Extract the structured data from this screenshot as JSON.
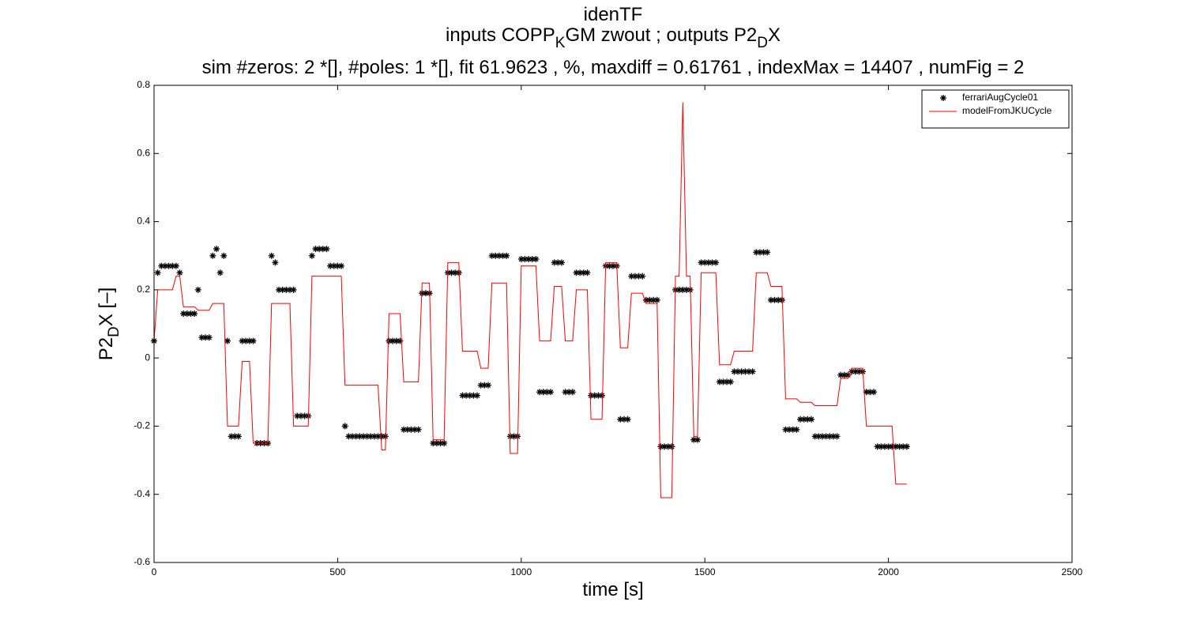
{
  "chart_data": {
    "type": "line",
    "title": "idenTF",
    "subtitle": [
      "inputs COPP",
      "K",
      "GM zwout ; outputs P2",
      "D",
      "X"
    ],
    "subtitle2": "sim #zeros:  2 *[], #poles:  1 *[], fit  61.9623 , %, maxdiff =  0.61761 , indexMax =  14407 , numFig =  2",
    "xlabel": "time [s]",
    "ylabel": [
      "P2",
      "D",
      "X [–]"
    ],
    "xlim": [
      0,
      2500
    ],
    "ylim": [
      -0.6,
      0.8
    ],
    "xticks": [
      0,
      500,
      1000,
      1500,
      2000,
      2500
    ],
    "yticks": [
      -0.6,
      -0.4,
      -0.2,
      0,
      0.2,
      0.4,
      0.6,
      0.8
    ],
    "grid": false,
    "legend": "northeast",
    "x": [
      0,
      10,
      20,
      30,
      40,
      50,
      60,
      70,
      80,
      90,
      100,
      110,
      120,
      130,
      140,
      150,
      160,
      170,
      180,
      190,
      200,
      210,
      220,
      230,
      240,
      250,
      260,
      270,
      280,
      290,
      300,
      310,
      320,
      330,
      340,
      350,
      360,
      370,
      380,
      390,
      400,
      410,
      420,
      430,
      440,
      450,
      460,
      470,
      480,
      490,
      500,
      510,
      520,
      530,
      540,
      550,
      560,
      570,
      580,
      590,
      600,
      610,
      620,
      630,
      640,
      650,
      660,
      670,
      680,
      690,
      700,
      710,
      720,
      730,
      740,
      750,
      760,
      770,
      780,
      790,
      800,
      810,
      820,
      830,
      840,
      850,
      860,
      870,
      880,
      890,
      900,
      910,
      920,
      930,
      940,
      950,
      960,
      970,
      980,
      990,
      1000,
      1010,
      1020,
      1030,
      1040,
      1050,
      1060,
      1070,
      1080,
      1090,
      1100,
      1110,
      1120,
      1130,
      1140,
      1150,
      1160,
      1170,
      1180,
      1190,
      1200,
      1210,
      1220,
      1230,
      1240,
      1250,
      1260,
      1270,
      1280,
      1290,
      1300,
      1310,
      1320,
      1330,
      1340,
      1350,
      1360,
      1370,
      1380,
      1390,
      1400,
      1410,
      1420,
      1430,
      1440,
      1450,
      1460,
      1470,
      1480,
      1490,
      1500,
      1510,
      1520,
      1530,
      1540,
      1550,
      1560,
      1570,
      1580,
      1590,
      1600,
      1610,
      1620,
      1630,
      1640,
      1650,
      1660,
      1670,
      1680,
      1690,
      1700,
      1710,
      1720,
      1730,
      1740,
      1750,
      1760,
      1770,
      1780,
      1790,
      1800,
      1810,
      1820,
      1830,
      1840,
      1850,
      1860,
      1870,
      1880,
      1890,
      1900,
      1910,
      1920,
      1930,
      1940,
      1950,
      1960,
      1970,
      1980,
      1990,
      2000,
      2010,
      2020,
      2030,
      2040,
      2050
    ],
    "series": [
      {
        "name": "ferrariAugCycle01",
        "color": "#000000",
        "style": "marker",
        "values": [
          0.05,
          0.25,
          0.27,
          0.27,
          0.27,
          0.27,
          0.27,
          0.25,
          0.13,
          0.13,
          0.13,
          0.13,
          0.2,
          0.06,
          0.06,
          0.06,
          0.3,
          0.32,
          0.25,
          0.3,
          0.05,
          -0.23,
          -0.23,
          -0.23,
          0.05,
          0.05,
          0.05,
          0.05,
          -0.25,
          -0.25,
          -0.25,
          -0.25,
          0.3,
          0.28,
          0.2,
          0.2,
          0.2,
          0.2,
          0.2,
          -0.17,
          -0.17,
          -0.17,
          -0.17,
          0.3,
          0.32,
          0.32,
          0.32,
          0.32,
          0.27,
          0.27,
          0.27,
          0.27,
          -0.2,
          -0.23,
          -0.23,
          -0.23,
          -0.23,
          -0.23,
          -0.23,
          -0.23,
          -0.23,
          -0.23,
          -0.23,
          -0.23,
          0.05,
          0.05,
          0.05,
          0.05,
          -0.21,
          -0.21,
          -0.21,
          -0.21,
          -0.21,
          0.19,
          0.19,
          0.19,
          -0.25,
          -0.25,
          -0.25,
          -0.25,
          0.25,
          0.25,
          0.25,
          0.25,
          -0.11,
          -0.11,
          -0.11,
          -0.11,
          -0.11,
          -0.08,
          -0.08,
          -0.08,
          0.3,
          0.3,
          0.3,
          0.3,
          0.3,
          -0.23,
          -0.23,
          -0.23,
          0.29,
          0.29,
          0.29,
          0.29,
          0.29,
          -0.1,
          -0.1,
          -0.1,
          -0.1,
          0.28,
          0.28,
          0.28,
          -0.1,
          -0.1,
          -0.1,
          0.25,
          0.25,
          0.25,
          0.25,
          -0.11,
          -0.11,
          -0.11,
          -0.11,
          0.27,
          0.27,
          0.27,
          0.27,
          -0.18,
          -0.18,
          -0.18,
          0.24,
          0.24,
          0.24,
          0.24,
          0.17,
          0.17,
          0.17,
          0.17,
          -0.26,
          -0.26,
          -0.26,
          -0.26,
          0.2,
          0.2,
          0.2,
          0.2,
          0.2,
          -0.24,
          -0.24,
          0.28,
          0.28,
          0.28,
          0.28,
          0.28,
          -0.07,
          -0.07,
          -0.07,
          -0.07,
          -0.04,
          -0.04,
          -0.04,
          -0.04,
          -0.04,
          -0.04,
          0.31,
          0.31,
          0.31,
          0.31,
          0.17,
          0.17,
          0.17,
          0.17,
          -0.21,
          -0.21,
          -0.21,
          -0.21,
          -0.18,
          -0.18,
          -0.18,
          -0.18,
          -0.23,
          -0.23,
          -0.23,
          -0.23,
          -0.23,
          -0.23,
          -0.23,
          -0.05,
          -0.05,
          -0.05,
          -0.04,
          -0.04,
          -0.04,
          -0.04,
          -0.1,
          -0.1,
          -0.1,
          -0.26,
          -0.26,
          -0.26,
          -0.26,
          -0.26,
          -0.26,
          -0.26,
          -0.26,
          -0.26
        ]
      },
      {
        "name": "modelFromJKUCycle",
        "color": "#ff0000",
        "style": "line",
        "values": [
          0.05,
          0.2,
          0.2,
          0.2,
          0.2,
          0.2,
          0.24,
          0.24,
          0.15,
          0.15,
          0.15,
          0.15,
          0.14,
          0.14,
          0.14,
          0.14,
          0.16,
          0.16,
          0.16,
          0.16,
          -0.2,
          -0.2,
          -0.2,
          -0.2,
          -0.01,
          -0.01,
          -0.01,
          -0.25,
          -0.25,
          -0.25,
          -0.25,
          -0.25,
          0.16,
          0.16,
          0.16,
          0.16,
          0.16,
          0.16,
          -0.2,
          -0.2,
          -0.2,
          -0.2,
          -0.2,
          0.24,
          0.24,
          0.24,
          0.24,
          0.24,
          0.24,
          0.24,
          0.24,
          0.24,
          -0.08,
          -0.08,
          -0.08,
          -0.08,
          -0.08,
          -0.08,
          -0.08,
          -0.08,
          -0.08,
          -0.08,
          -0.27,
          -0.27,
          0.13,
          0.13,
          0.13,
          0.13,
          -0.07,
          -0.07,
          -0.07,
          -0.07,
          -0.07,
          0.22,
          0.22,
          0.22,
          -0.24,
          -0.24,
          -0.24,
          -0.24,
          0.28,
          0.28,
          0.28,
          0.28,
          0.02,
          0.02,
          0.02,
          0.02,
          0.02,
          -0.03,
          -0.03,
          -0.03,
          0.22,
          0.22,
          0.22,
          0.22,
          0.22,
          -0.28,
          -0.28,
          -0.28,
          0.27,
          0.27,
          0.27,
          0.27,
          0.27,
          0.05,
          0.05,
          0.05,
          0.05,
          0.21,
          0.21,
          0.21,
          0.05,
          0.05,
          0.05,
          0.2,
          0.2,
          0.2,
          0.2,
          -0.18,
          -0.18,
          -0.18,
          -0.18,
          0.28,
          0.28,
          0.28,
          0.28,
          0.03,
          0.03,
          0.03,
          0.19,
          0.19,
          0.19,
          0.19,
          0.16,
          0.16,
          0.16,
          0.16,
          -0.41,
          -0.41,
          -0.41,
          -0.41,
          0.24,
          0.24,
          0.75,
          0.24,
          0.24,
          -0.23,
          -0.23,
          0.25,
          0.25,
          0.25,
          0.25,
          0.25,
          -0.02,
          -0.02,
          -0.02,
          -0.02,
          0.02,
          0.02,
          0.02,
          0.02,
          0.02,
          0.02,
          0.25,
          0.25,
          0.25,
          0.25,
          0.21,
          0.21,
          0.21,
          0.21,
          -0.12,
          -0.12,
          -0.12,
          -0.12,
          -0.13,
          -0.13,
          -0.13,
          -0.13,
          -0.14,
          -0.14,
          -0.14,
          -0.14,
          -0.14,
          -0.14,
          -0.14,
          -0.06,
          -0.06,
          -0.06,
          -0.03,
          -0.03,
          -0.03,
          -0.03,
          -0.2,
          -0.2,
          -0.2,
          -0.2,
          -0.2,
          -0.2,
          -0.2,
          -0.2,
          -0.37,
          -0.37,
          -0.37,
          -0.37
        ]
      }
    ]
  }
}
